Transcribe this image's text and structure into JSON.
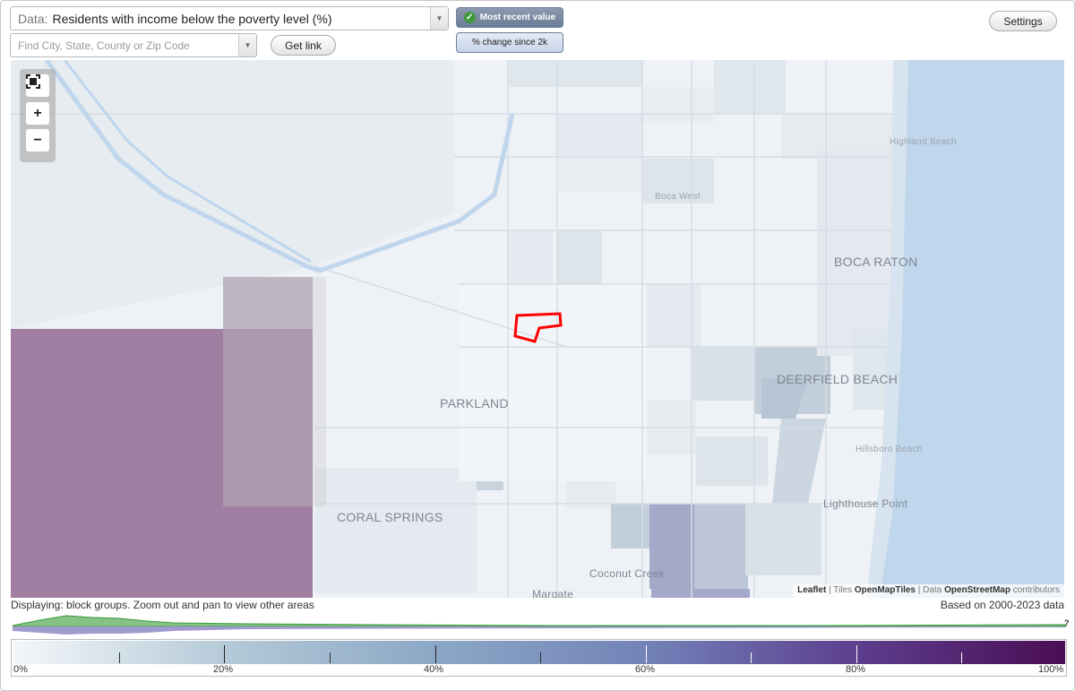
{
  "controls": {
    "data_label": "Data:",
    "data_value": "Residents with income below the poverty level (%)",
    "search_placeholder": "Find City, State, County or Zip Code",
    "get_link_label": "Get link",
    "settings_label": "Settings",
    "toggle_active_label": "Most recent value",
    "toggle_inactive_label": "% change since 2k",
    "dropdown_icon": "triangle-down-icon",
    "check_icon": "checkmark-icon"
  },
  "map": {
    "places": {
      "boca_raton": "BOCA RATON",
      "deerfield_beach": "DEERFIELD BEACH",
      "parkland": "PARKLAND",
      "coral_springs": "CORAL SPRINGS",
      "boca_west": "Boca West",
      "highland_beach": "Highland Beach",
      "hillsboro_beach": "Hillsboro Beach",
      "lighthouse_point": "Lighthouse Point",
      "coconut_creek": "Coconut Creek",
      "margate": "Margate"
    },
    "zoom": {
      "fit_icon": "fullscreen-icon",
      "in": "+",
      "out": "−"
    },
    "attribution": {
      "leaflet": "Leaflet",
      "sep1": " | Tiles ",
      "tiles": "OpenMapTiles",
      "sep2": " | Data ",
      "data": "OpenStreetMap",
      "suffix": " contributors"
    },
    "colors": {
      "water": "#bfd6ec",
      "highlight_outline": "#ff0000",
      "purple_region": "#a07fa3"
    }
  },
  "status": {
    "displaying": "Displaying: block groups. Zoom out and pan to view other areas",
    "based_on": "Based on 2000-2023 data",
    "histogram_marker": "?"
  },
  "legend": {
    "labels": [
      "0%",
      "20%",
      "40%",
      "60%",
      "80%",
      "100%"
    ]
  }
}
